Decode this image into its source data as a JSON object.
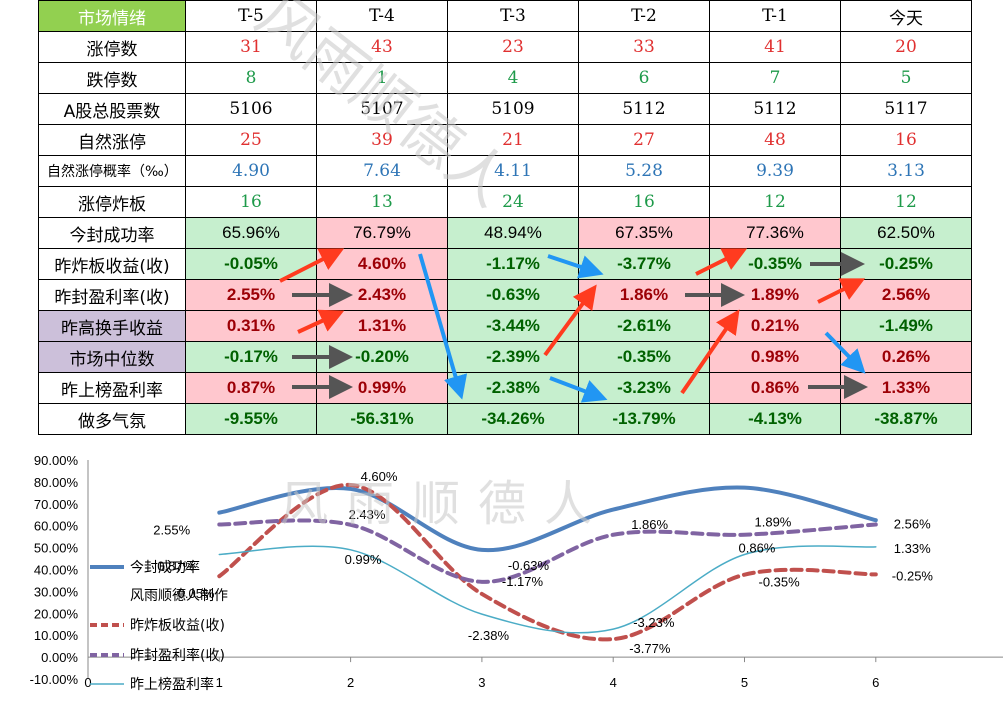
{
  "table": {
    "header": {
      "label": "市场情绪",
      "columns": [
        "T-5",
        "T-4",
        "T-3",
        "T-2",
        "T-1",
        "今天"
      ]
    },
    "rows": [
      {
        "label": "涨停数",
        "style": "red",
        "values": [
          "31",
          "43",
          "23",
          "33",
          "41",
          "20"
        ]
      },
      {
        "label": "跌停数",
        "style": "green",
        "values": [
          "8",
          "1",
          "4",
          "6",
          "7",
          "5"
        ]
      },
      {
        "label": "A股总股票数",
        "style": "black",
        "values": [
          "5106",
          "5107",
          "5109",
          "5112",
          "5112",
          "5117"
        ]
      },
      {
        "label": "自然涨停",
        "style": "red",
        "values": [
          "25",
          "39",
          "21",
          "27",
          "48",
          "16"
        ]
      },
      {
        "label": "自然涨停概率（‰）",
        "style": "blue",
        "small": true,
        "values": [
          "4.90",
          "7.64",
          "4.11",
          "5.28",
          "9.39",
          "3.13"
        ]
      },
      {
        "label": "涨停炸板",
        "style": "green",
        "values": [
          "16",
          "13",
          "24",
          "16",
          "12",
          "12"
        ]
      },
      {
        "label": "今封成功率",
        "style": "rate",
        "values": [
          "65.96%",
          "76.79%",
          "48.94%",
          "67.35%",
          "77.36%",
          "62.50%"
        ],
        "fills": [
          "g",
          "p",
          "g",
          "p",
          "p",
          "g"
        ]
      },
      {
        "label": "昨炸板收益(收)",
        "style": "pct",
        "values": [
          "-0.05%",
          "4.60%",
          "-1.17%",
          "-3.77%",
          "-0.35%",
          "-0.25%"
        ]
      },
      {
        "label": "昨封盈利率(收)",
        "style": "pct",
        "values": [
          "2.55%",
          "2.43%",
          "-0.63%",
          "1.86%",
          "1.89%",
          "2.56%"
        ]
      },
      {
        "label": "昨高换手收益",
        "style": "pct",
        "purple": true,
        "values": [
          "0.31%",
          "1.31%",
          "-3.44%",
          "-2.61%",
          "0.21%",
          "-1.49%"
        ]
      },
      {
        "label": "市场中位数",
        "style": "pct",
        "purple": true,
        "values": [
          "-0.17%",
          "-0.20%",
          "-2.39%",
          "-0.35%",
          "0.98%",
          "0.26%"
        ]
      },
      {
        "label": "昨上榜盈利率",
        "style": "pct",
        "values": [
          "0.87%",
          "0.99%",
          "-2.38%",
          "-3.23%",
          "0.86%",
          "1.33%"
        ]
      },
      {
        "label": "做多气氛",
        "style": "pct",
        "values": [
          "-9.55%",
          "-56.31%",
          "-34.26%",
          "-13.79%",
          "-4.13%",
          "-38.87%"
        ]
      }
    ]
  },
  "watermark": "风雨顺德人",
  "colors": {
    "up_arrow": "#ff3b1f",
    "flat_arrow": "#555555",
    "down_arrow": "#2196f3"
  },
  "chart_data": {
    "type": "line",
    "x": [
      1,
      2,
      3,
      4,
      5,
      6
    ],
    "ylim": [
      -0.1,
      0.9
    ],
    "xlim": [
      0,
      7
    ],
    "yticks": [
      "-10.00%",
      "0.00%",
      "10.00%",
      "20.00%",
      "30.00%",
      "40.00%",
      "50.00%",
      "60.00%",
      "70.00%",
      "80.00%",
      "90.00%"
    ],
    "xticks": [
      "0",
      "1",
      "2",
      "3",
      "4",
      "5",
      "6"
    ],
    "note": "风雨顺德人制作",
    "series": [
      {
        "name": "今封成功率",
        "values": [
          0.6596,
          0.7679,
          0.4894,
          0.6735,
          0.7736,
          0.625
        ],
        "color": "#4f81bd",
        "dash": "",
        "width": 4,
        "labels": []
      },
      {
        "name": "昨炸板收益(收)",
        "values": [
          0.3695,
          0.786,
          0.2883,
          0.0823,
          0.3765,
          0.3775
        ],
        "color": "#c0504d",
        "dash": "10,6",
        "width": 4,
        "labels": [
          "-0.05%",
          "4.60%",
          "-1.17%",
          "-3.77%",
          "-0.35%",
          "-0.25%"
        ]
      },
      {
        "name": "昨封盈利率(收)",
        "values": [
          0.6055,
          0.6043,
          0.3437,
          0.5586,
          0.5589,
          0.6056
        ],
        "color": "#8064a2",
        "dash": "10,6",
        "width": 4,
        "labels": [
          "2.55%",
          "2.43%",
          "-0.63%",
          "1.86%",
          "1.89%",
          "2.56%"
        ]
      },
      {
        "name": "昨上榜盈利率",
        "values": [
          0.4687,
          0.4899,
          0.1962,
          0.1277,
          0.4686,
          0.5033
        ],
        "color": "#4bacc6",
        "dash": "",
        "width": 1.5,
        "labels": [
          "0.87%",
          "0.99%",
          "-2.38%",
          "-3.23%",
          "0.86%",
          "1.33%"
        ]
      }
    ]
  }
}
